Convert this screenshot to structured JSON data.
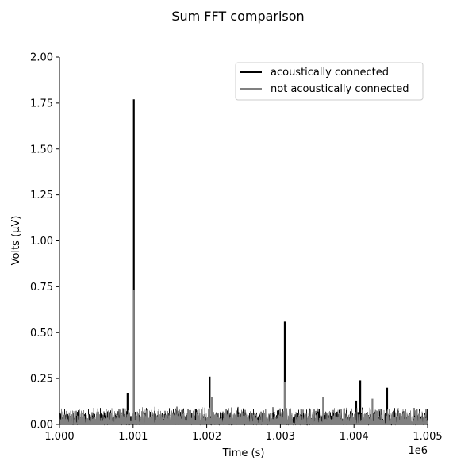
{
  "chart_data": {
    "type": "line",
    "title": "Sum FFT comparison",
    "xlabel": "Time (s)",
    "ylabel": "Volts (μV)",
    "x_offset_label": "1e6",
    "xlim": [
      1.0,
      1.005
    ],
    "ylim": [
      0.0,
      2.0
    ],
    "x_ticks": [
      1.0,
      1.001,
      1.002,
      1.003,
      1.004,
      1.005
    ],
    "x_tick_labels": [
      "1.000",
      "1.001",
      "1.002",
      "1.003",
      "1.004",
      "1.005"
    ],
    "y_ticks": [
      0.0,
      0.25,
      0.5,
      0.75,
      1.0,
      1.25,
      1.5,
      1.75,
      2.0
    ],
    "y_tick_labels": [
      "0.00",
      "0.25",
      "0.50",
      "0.75",
      "1.00",
      "1.25",
      "1.50",
      "1.75",
      "2.00"
    ],
    "grid": false,
    "legend_position": "top-right",
    "series": [
      {
        "name": "acoustically connected",
        "color": "#000000",
        "noise_level": 0.1,
        "peaks": [
          {
            "x": 1.000925,
            "y": 0.17
          },
          {
            "x": 1.00101,
            "y": 1.77
          },
          {
            "x": 1.00204,
            "y": 0.26
          },
          {
            "x": 1.00306,
            "y": 0.56
          },
          {
            "x": 1.00403,
            "y": 0.13
          },
          {
            "x": 1.004085,
            "y": 0.24
          },
          {
            "x": 1.00445,
            "y": 0.2
          }
        ]
      },
      {
        "name": "not acoustically connected",
        "color": "#808080",
        "noise_level": 0.1,
        "peaks": [
          {
            "x": 1.00101,
            "y": 0.73
          },
          {
            "x": 1.00207,
            "y": 0.15
          },
          {
            "x": 1.00306,
            "y": 0.23
          },
          {
            "x": 1.00358,
            "y": 0.15
          },
          {
            "x": 1.00425,
            "y": 0.14
          }
        ]
      }
    ]
  }
}
